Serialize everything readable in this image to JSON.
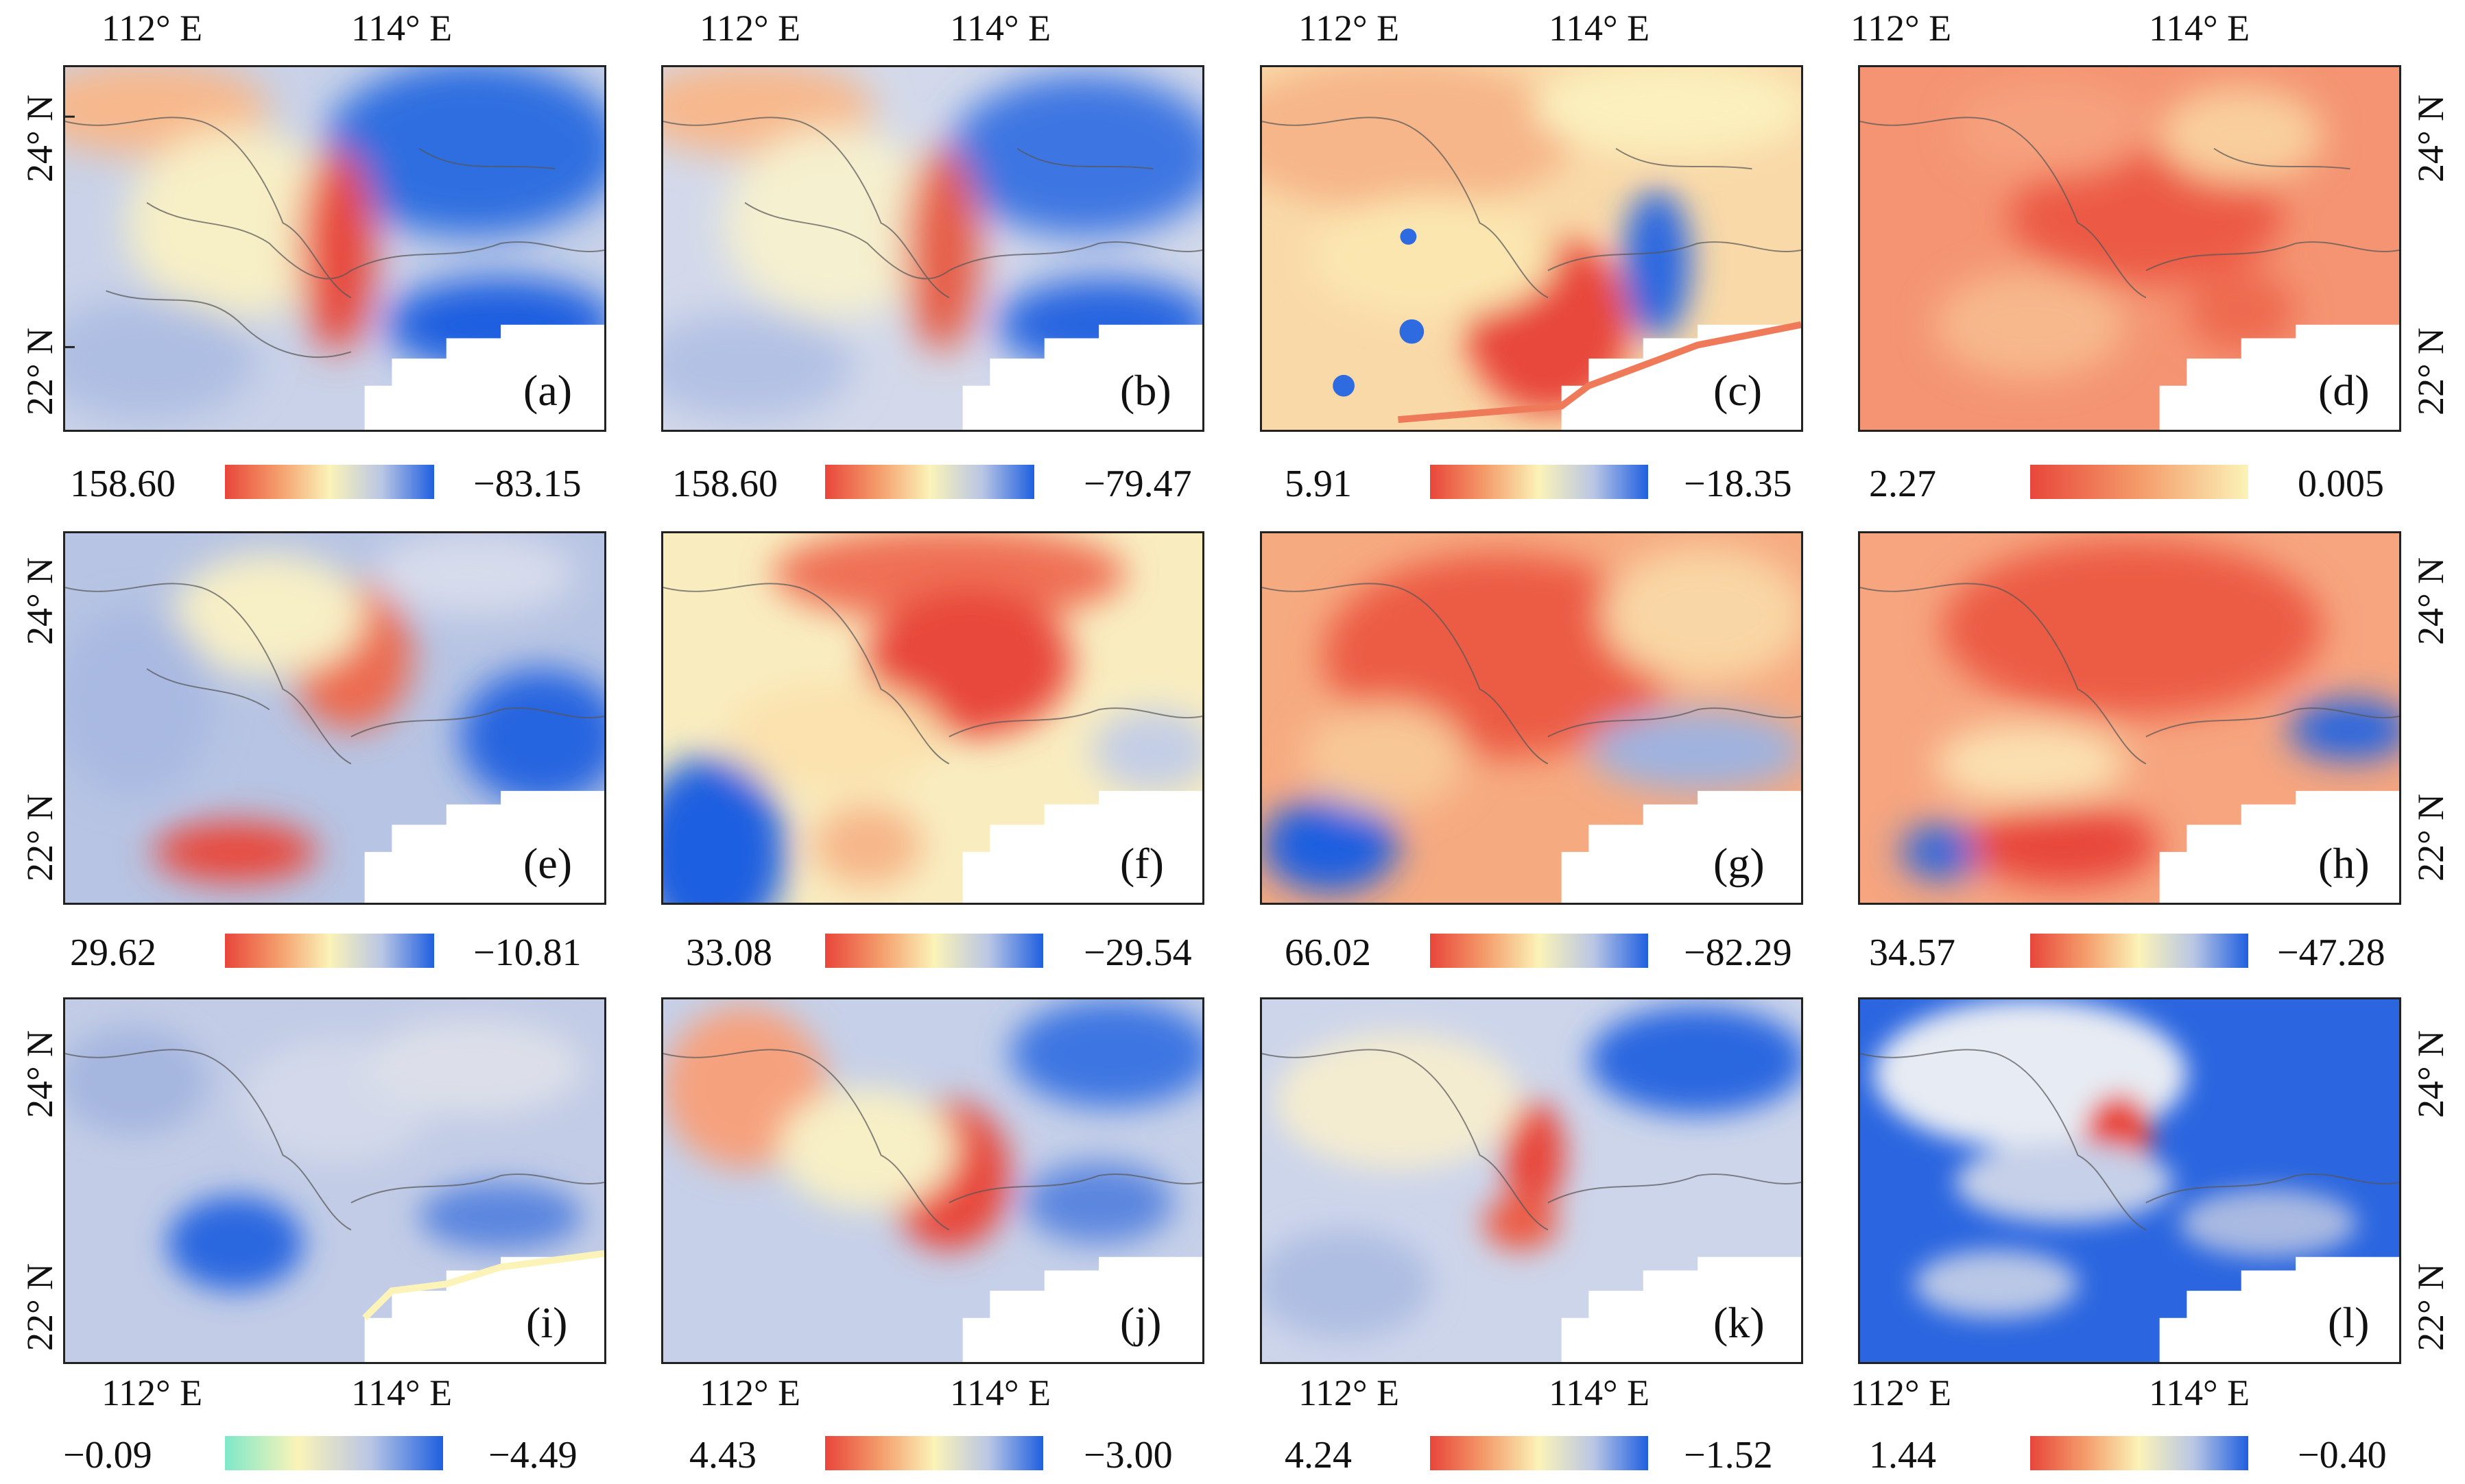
{
  "axes": {
    "lon_112": "112° E",
    "lon_114": "114° E",
    "lat_24": "24° N",
    "lat_22": "22° N"
  },
  "panels": [
    {
      "tag": "(a)",
      "max": "158.60",
      "min": "−83.15",
      "palette": "rdylbu"
    },
    {
      "tag": "(b)",
      "max": "158.60",
      "min": "−79.47",
      "palette": "rdylbu"
    },
    {
      "tag": "(c)",
      "max": "5.91",
      "min": "−18.35",
      "palette": "rdylbu"
    },
    {
      "tag": "(d)",
      "max": "2.27",
      "min": "0.005",
      "palette": "rdyl"
    },
    {
      "tag": "(e)",
      "max": "29.62",
      "min": "−10.81",
      "palette": "rdylbu"
    },
    {
      "tag": "(f)",
      "max": "33.08",
      "min": "−29.54",
      "palette": "rdylbu"
    },
    {
      "tag": "(g)",
      "max": "66.02",
      "min": "−82.29",
      "palette": "rdylbu"
    },
    {
      "tag": "(h)",
      "max": "34.57",
      "min": "−47.28",
      "palette": "rdylbu"
    },
    {
      "tag": "(i)",
      "max": "−0.09",
      "min": "−4.49",
      "palette": "cyanbu"
    },
    {
      "tag": "(j)",
      "max": "4.43",
      "min": "−3.00",
      "palette": "rdylbu"
    },
    {
      "tag": "(k)",
      "max": "4.24",
      "min": "−1.52",
      "palette": "rdylbu"
    },
    {
      "tag": "(l)",
      "max": "1.44",
      "min": "−0.40",
      "palette": "rdylbu"
    }
  ],
  "colors": {
    "red": "#e8463a",
    "orange": "#f49b6a",
    "yellow": "#fbf3b8",
    "lightblue": "#b9c6e4",
    "blue": "#1f5fe0",
    "cyan": "#7fe8c9"
  }
}
